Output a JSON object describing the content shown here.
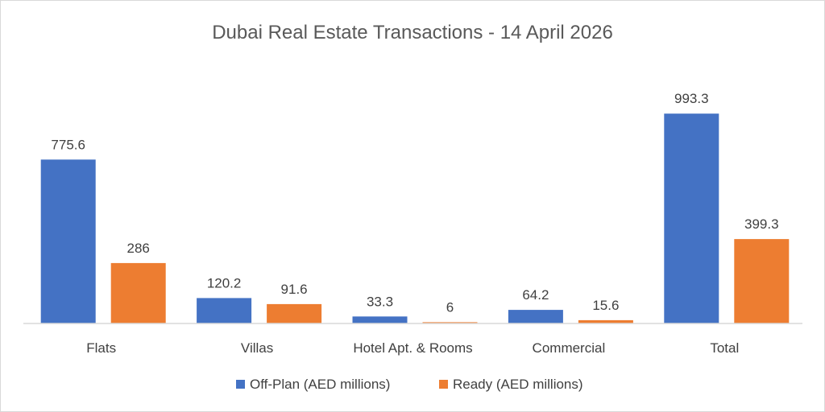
{
  "chart_data": {
    "type": "bar",
    "title": "Dubai Real Estate Transactions - 14 April 2026",
    "categories": [
      "Flats",
      "Villas",
      "Hotel Apt. & Rooms",
      "Commercial",
      "Total"
    ],
    "series": [
      {
        "name": "Off-Plan (AED millions)",
        "color": "#4472C4",
        "values": [
          775.6,
          120.2,
          33.3,
          64.2,
          993.3
        ],
        "labels": [
          "775.6",
          "120.2",
          "33.3",
          "64.2",
          "993.3"
        ]
      },
      {
        "name": "Ready (AED millions)",
        "color": "#ED7D31",
        "values": [
          286,
          91.6,
          6,
          15.6,
          399.3
        ],
        "labels": [
          "286",
          "91.6",
          "6",
          "15.6",
          "399.3"
        ]
      }
    ],
    "xlabel": "",
    "ylabel": "",
    "ylim": [
      0,
      1000
    ],
    "grid": false,
    "legend_position": "bottom",
    "axis_color": "#d9d9d9"
  }
}
